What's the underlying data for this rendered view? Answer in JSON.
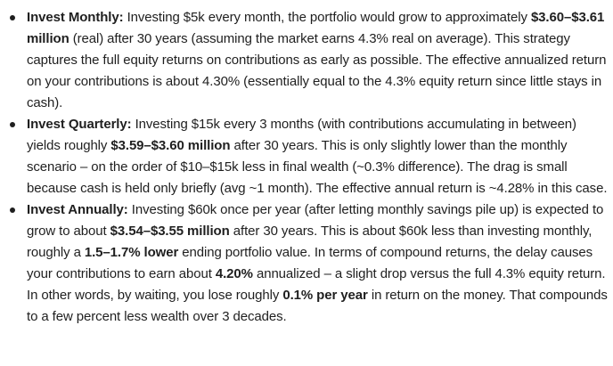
{
  "items": [
    {
      "label": "Invest Monthly:",
      "segments": [
        {
          "text": " Investing $5k every month, the portfolio would grow to approximately ",
          "bold": false
        },
        {
          "text": "$3.60–$3.61 million",
          "bold": true
        },
        {
          "text": " (real) after 30 years (assuming the market earns 4.3% real on average). This strategy captures the full equity returns on contributions as early as possible. The effective annualized return on your contributions is about 4.30% (essentially equal to the 4.3% equity return since little stays in cash).",
          "bold": false
        }
      ]
    },
    {
      "label": "Invest Quarterly:",
      "segments": [
        {
          "text": " Investing $15k every 3 months (with contributions accumulating in between) yields roughly ",
          "bold": false
        },
        {
          "text": "$3.59–$3.60 million",
          "bold": true
        },
        {
          "text": " after 30 years. This is only slightly lower than the monthly scenario – on the order of $10–$15k less in final wealth (~0.3% difference). The drag is small because cash is held only briefly (avg ~1 month). The effective annual return is ~4.28% in this case.",
          "bold": false
        }
      ]
    },
    {
      "label": "Invest Annually:",
      "segments": [
        {
          "text": " Investing $60k once per year (after letting monthly savings pile up) is expected to grow to about ",
          "bold": false
        },
        {
          "text": "$3.54–$3.55 million",
          "bold": true
        },
        {
          "text": " after 30 years. This is about $60k less than investing monthly, roughly a ",
          "bold": false
        },
        {
          "text": "1.5–1.7% lower",
          "bold": true
        },
        {
          "text": " ending portfolio value. In terms of compound returns, the delay causes your contributions to earn about ",
          "bold": false
        },
        {
          "text": "4.20%",
          "bold": true
        },
        {
          "text": " annualized – a slight drop versus the full 4.3% equity return. In other words, by waiting, you lose roughly ",
          "bold": false
        },
        {
          "text": "0.1% per year",
          "bold": true
        },
        {
          "text": " in return on the money. That compounds to a few percent less wealth over 3 decades.",
          "bold": false
        }
      ]
    }
  ]
}
